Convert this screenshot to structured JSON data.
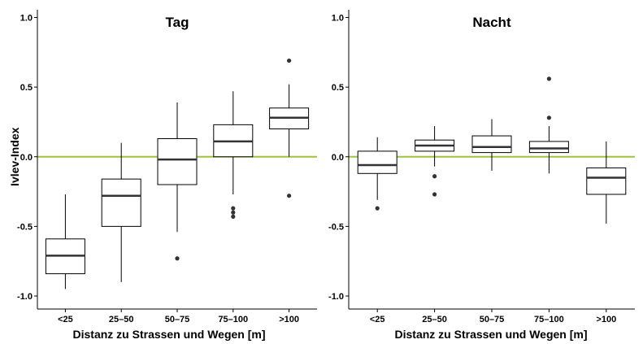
{
  "chart_data": [
    {
      "type": "box",
      "title": "Tag",
      "xlabel": "Distanz zu Strassen und Wegen [m]",
      "ylabel": "Ivlev-Index",
      "ylim": [
        -1.0,
        1.0
      ],
      "yticks": [
        "-1.0",
        "-0.5",
        "0.0",
        "0.5",
        "1.0"
      ],
      "reference_line": {
        "y": 0.0,
        "color": "#9bc53d"
      },
      "categories": [
        "<25",
        "25–50",
        "50–75",
        "75–100",
        ">100"
      ],
      "boxes": [
        {
          "whisker_low": -0.95,
          "q1": -0.84,
          "median": -0.71,
          "q3": -0.59,
          "whisker_high": -0.27,
          "outliers": []
        },
        {
          "whisker_low": -0.9,
          "q1": -0.5,
          "median": -0.28,
          "q3": -0.16,
          "whisker_high": 0.1,
          "outliers": []
        },
        {
          "whisker_low": -0.54,
          "q1": -0.2,
          "median": -0.02,
          "q3": 0.13,
          "whisker_high": 0.39,
          "outliers": [
            -0.73
          ]
        },
        {
          "whisker_low": -0.27,
          "q1": 0.0,
          "median": 0.11,
          "q3": 0.23,
          "whisker_high": 0.47,
          "outliers": [
            -0.37,
            -0.4,
            -0.43
          ]
        },
        {
          "whisker_low": 0.0,
          "q1": 0.2,
          "median": 0.28,
          "q3": 0.35,
          "whisker_high": 0.52,
          "outliers": [
            0.69,
            -0.28
          ]
        }
      ]
    },
    {
      "type": "box",
      "title": "Nacht",
      "xlabel": "Distanz zu Strassen und Wegen [m]",
      "ylabel": "",
      "ylim": [
        -1.0,
        1.0
      ],
      "yticks": [
        "-1.0",
        "-0.5",
        "0.0",
        "0.5",
        "1.0"
      ],
      "reference_line": {
        "y": 0.0,
        "color": "#9bc53d"
      },
      "categories": [
        "<25",
        "25–50",
        "50–75",
        "75–100",
        ">100"
      ],
      "boxes": [
        {
          "whisker_low": -0.31,
          "q1": -0.12,
          "median": -0.06,
          "q3": 0.04,
          "whisker_high": 0.14,
          "outliers": [
            -0.37
          ]
        },
        {
          "whisker_low": -0.07,
          "q1": 0.04,
          "median": 0.08,
          "q3": 0.12,
          "whisker_high": 0.22,
          "outliers": [
            -0.14,
            -0.27
          ]
        },
        {
          "whisker_low": -0.1,
          "q1": 0.03,
          "median": 0.07,
          "q3": 0.15,
          "whisker_high": 0.27,
          "outliers": []
        },
        {
          "whisker_low": -0.12,
          "q1": 0.03,
          "median": 0.06,
          "q3": 0.11,
          "whisker_high": 0.22,
          "outliers": [
            0.28,
            0.56
          ]
        },
        {
          "whisker_low": -0.48,
          "q1": -0.27,
          "median": -0.15,
          "q3": -0.08,
          "whisker_high": 0.11,
          "outliers": []
        }
      ]
    }
  ]
}
